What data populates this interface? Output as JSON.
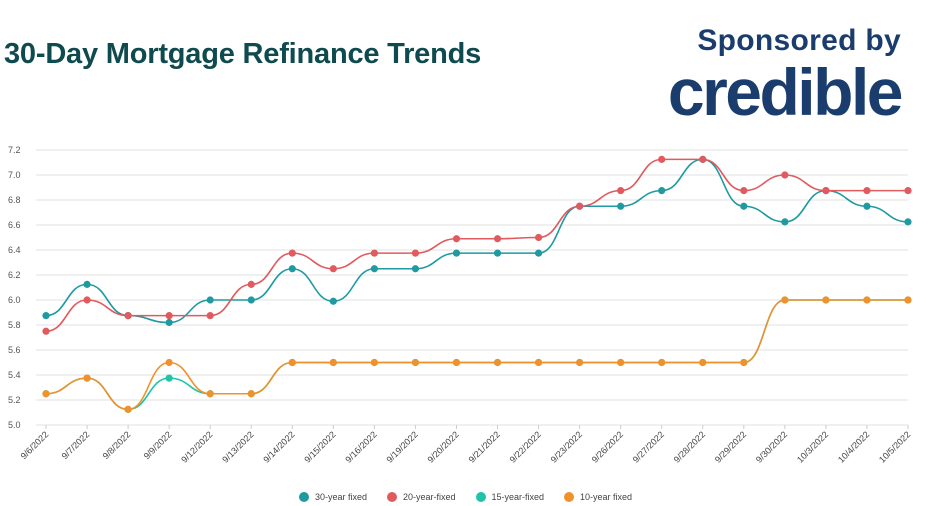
{
  "header": {
    "title": "30-Day Mortgage Refinance Trends",
    "sponsor_label": "Sponsored by",
    "sponsor_logo": "credible"
  },
  "chart_data": {
    "type": "line",
    "title": "30-Day Mortgage Refinance Trends",
    "xlabel": "",
    "ylabel": "",
    "ylim": [
      5.0,
      7.2
    ],
    "yticks": [
      5.0,
      5.2,
      5.4,
      5.6,
      5.8,
      6.0,
      6.2,
      6.4,
      6.6,
      6.8,
      7.0,
      7.2
    ],
    "ytick_labels": [
      "5.0",
      "5.2",
      "5.4",
      "5.6",
      "5.8",
      "6.0",
      "6.2",
      "6.4",
      "6.6",
      "6.8",
      "7.0",
      "7.2"
    ],
    "grid": true,
    "legend_position": "bottom-center",
    "categories": [
      "9/6/2022",
      "9/7/2022",
      "9/8/2022",
      "9/9/2022",
      "9/12/2022",
      "9/13/2022",
      "9/14/2022",
      "9/15/2022",
      "9/16/2022",
      "9/19/2022",
      "9/20/2022",
      "9/21/2022",
      "9/22/2022",
      "9/23/2022",
      "9/26/2022",
      "9/27/2022",
      "9/28/2022",
      "9/29/2022",
      "9/30/2022",
      "10/3/2022",
      "10/4/2022",
      "10/5/2022"
    ],
    "series": [
      {
        "name": "30-year fixed",
        "color": "#1e9aa0",
        "values": [
          5.875,
          6.125,
          5.875,
          5.82,
          6.0,
          6.0,
          6.25,
          5.99,
          6.25,
          6.25,
          6.375,
          6.375,
          6.375,
          6.75,
          6.75,
          6.875,
          7.125,
          6.75,
          6.625,
          6.875,
          6.75,
          6.625
        ]
      },
      {
        "name": "20-year-fixed",
        "color": "#e05a5e",
        "values": [
          5.75,
          6.0,
          5.875,
          5.875,
          5.875,
          6.125,
          6.375,
          6.25,
          6.375,
          6.375,
          6.49,
          6.49,
          6.5,
          6.75,
          6.875,
          7.125,
          7.125,
          6.875,
          7.0,
          6.875,
          6.875,
          6.875
        ]
      },
      {
        "name": "15-year-fixed",
        "color": "#1ec4a8",
        "values": [
          5.25,
          5.375,
          5.125,
          5.375,
          5.25,
          5.25,
          5.5,
          5.5,
          5.5,
          5.5,
          5.5,
          5.5,
          5.5,
          5.5,
          5.5,
          5.5,
          5.5,
          5.5,
          6.0,
          6.0,
          6.0,
          6.0
        ]
      },
      {
        "name": "10-year fixed",
        "color": "#f0922b",
        "values": [
          5.25,
          5.375,
          5.125,
          5.5,
          5.25,
          5.25,
          5.5,
          5.5,
          5.5,
          5.5,
          5.5,
          5.5,
          5.5,
          5.5,
          5.5,
          5.5,
          5.5,
          5.5,
          6.0,
          6.0,
          6.0,
          6.0
        ]
      }
    ]
  }
}
